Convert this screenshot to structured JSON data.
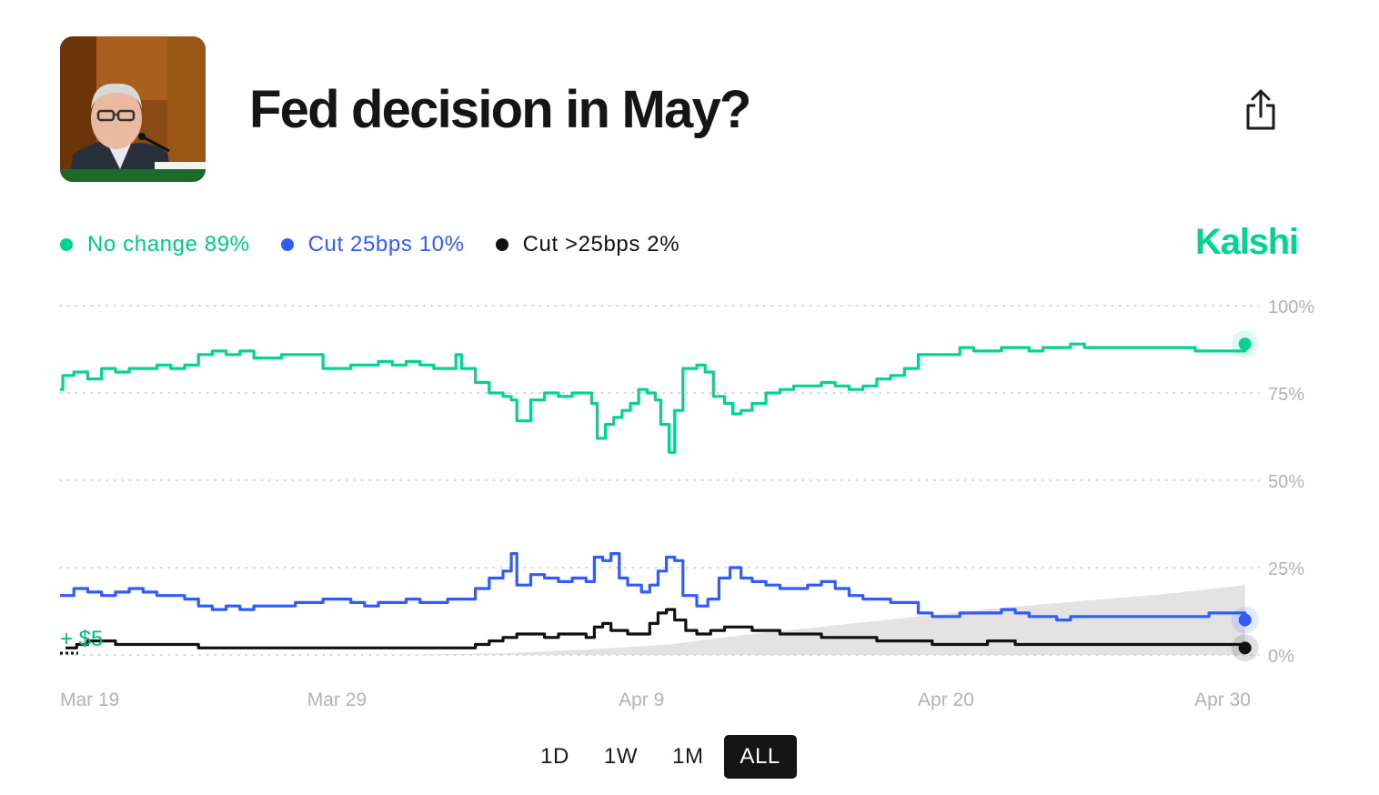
{
  "header": {
    "title": "Fed decision in May?",
    "thumbnail_icon": "speaker-photo",
    "share_icon": "share-icon"
  },
  "brand": {
    "name": "Kalshi",
    "color": "#00d492"
  },
  "legend": [
    {
      "label": "No change",
      "value": "89%",
      "color": "#00d492"
    },
    {
      "label": "Cut 25bps",
      "value": "10%",
      "color": "#2f5bff"
    },
    {
      "label": "Cut >25bps",
      "value": "2%",
      "color": "#111111"
    }
  ],
  "time_ranges": [
    "1D",
    "1W",
    "1M",
    "ALL"
  ],
  "selected_range": "ALL",
  "chart_data": {
    "type": "line",
    "ylim": [
      0,
      100
    ],
    "y_ticks": [
      0,
      25,
      50,
      75,
      100
    ],
    "y_tick_labels": [
      "0%",
      "25%",
      "50%",
      "75%",
      "100%"
    ],
    "x_range_days": [
      0,
      43.5
    ],
    "x_ticks": [
      {
        "label": "Mar 19",
        "day": 0
      },
      {
        "label": "Mar 29",
        "day": 10
      },
      {
        "label": "Apr 9",
        "day": 21
      },
      {
        "label": "Apr 20",
        "day": 32
      },
      {
        "label": "Apr 30",
        "day": 42
      }
    ],
    "annotation": "+ $5",
    "series": [
      {
        "name": "No change",
        "color": "#00d492",
        "points": [
          [
            0,
            76
          ],
          [
            0.1,
            80
          ],
          [
            0.5,
            81
          ],
          [
            1,
            79
          ],
          [
            1.5,
            82
          ],
          [
            2,
            81
          ],
          [
            2.5,
            82
          ],
          [
            3,
            82
          ],
          [
            3.5,
            83
          ],
          [
            4,
            82
          ],
          [
            4.5,
            83
          ],
          [
            5,
            86
          ],
          [
            5.5,
            87
          ],
          [
            6,
            86
          ],
          [
            6.5,
            87
          ],
          [
            7,
            85
          ],
          [
            7.5,
            85
          ],
          [
            8,
            86
          ],
          [
            8.5,
            86
          ],
          [
            9,
            86
          ],
          [
            9.5,
            82
          ],
          [
            10,
            82
          ],
          [
            10.5,
            83
          ],
          [
            11,
            83
          ],
          [
            11.5,
            84
          ],
          [
            12,
            83
          ],
          [
            12.5,
            84
          ],
          [
            13,
            83
          ],
          [
            13.5,
            82
          ],
          [
            14,
            82
          ],
          [
            14.3,
            86
          ],
          [
            14.5,
            82
          ],
          [
            15,
            78
          ],
          [
            15.5,
            75
          ],
          [
            16,
            74
          ],
          [
            16.3,
            73
          ],
          [
            16.5,
            67
          ],
          [
            17,
            73
          ],
          [
            17.5,
            75
          ],
          [
            18,
            74
          ],
          [
            18.5,
            75
          ],
          [
            19,
            75
          ],
          [
            19.2,
            72
          ],
          [
            19.4,
            62
          ],
          [
            19.7,
            66
          ],
          [
            20,
            68
          ],
          [
            20.3,
            70
          ],
          [
            20.6,
            72
          ],
          [
            20.9,
            76
          ],
          [
            21.2,
            75
          ],
          [
            21.5,
            73
          ],
          [
            21.7,
            66
          ],
          [
            22,
            58
          ],
          [
            22.2,
            70
          ],
          [
            22.5,
            82
          ],
          [
            23,
            83
          ],
          [
            23.3,
            81
          ],
          [
            23.6,
            74
          ],
          [
            24,
            72
          ],
          [
            24.3,
            69
          ],
          [
            24.6,
            70
          ],
          [
            25,
            72
          ],
          [
            25.5,
            75
          ],
          [
            26,
            76
          ],
          [
            26.5,
            77
          ],
          [
            27,
            77
          ],
          [
            27.5,
            78
          ],
          [
            28,
            77
          ],
          [
            28.5,
            76
          ],
          [
            29,
            77
          ],
          [
            29.5,
            79
          ],
          [
            30,
            80
          ],
          [
            30.5,
            82
          ],
          [
            31,
            86
          ],
          [
            31.5,
            86
          ],
          [
            32,
            86
          ],
          [
            32.5,
            88
          ],
          [
            33,
            87
          ],
          [
            33.5,
            87
          ],
          [
            34,
            88
          ],
          [
            34.5,
            88
          ],
          [
            35,
            87
          ],
          [
            35.5,
            88
          ],
          [
            36,
            88
          ],
          [
            36.5,
            89
          ],
          [
            37,
            88
          ],
          [
            37.5,
            88
          ],
          [
            38,
            88
          ],
          [
            38.5,
            88
          ],
          [
            39,
            88
          ],
          [
            39.5,
            88
          ],
          [
            40,
            88
          ],
          [
            40.5,
            88
          ],
          [
            41,
            87
          ],
          [
            41.5,
            87
          ],
          [
            42,
            87
          ],
          [
            42.8,
            89
          ]
        ]
      },
      {
        "name": "Cut 25bps",
        "color": "#2f5bff",
        "points": [
          [
            0,
            17
          ],
          [
            0.5,
            19
          ],
          [
            1,
            18
          ],
          [
            1.5,
            17
          ],
          [
            2,
            18
          ],
          [
            2.5,
            19
          ],
          [
            3,
            18
          ],
          [
            3.5,
            17
          ],
          [
            4,
            17
          ],
          [
            4.5,
            16
          ],
          [
            5,
            14
          ],
          [
            5.5,
            13
          ],
          [
            6,
            14
          ],
          [
            6.5,
            13
          ],
          [
            7,
            14
          ],
          [
            7.5,
            14
          ],
          [
            8,
            14
          ],
          [
            8.5,
            15
          ],
          [
            9,
            15
          ],
          [
            9.5,
            16
          ],
          [
            10,
            16
          ],
          [
            10.5,
            15
          ],
          [
            11,
            14
          ],
          [
            11.5,
            15
          ],
          [
            12,
            15
          ],
          [
            12.5,
            16
          ],
          [
            13,
            15
          ],
          [
            13.5,
            15
          ],
          [
            14,
            16
          ],
          [
            14.5,
            16
          ],
          [
            15,
            19
          ],
          [
            15.5,
            22
          ],
          [
            16,
            24
          ],
          [
            16.3,
            29
          ],
          [
            16.5,
            20
          ],
          [
            17,
            23
          ],
          [
            17.5,
            22
          ],
          [
            18,
            21
          ],
          [
            18.5,
            22
          ],
          [
            19,
            21
          ],
          [
            19.3,
            28
          ],
          [
            19.6,
            27
          ],
          [
            19.9,
            29
          ],
          [
            20.2,
            22
          ],
          [
            20.5,
            20
          ],
          [
            21,
            18
          ],
          [
            21.3,
            20
          ],
          [
            21.6,
            24
          ],
          [
            21.9,
            28
          ],
          [
            22.2,
            27
          ],
          [
            22.5,
            17
          ],
          [
            23,
            14
          ],
          [
            23.4,
            16
          ],
          [
            23.8,
            22
          ],
          [
            24.2,
            25
          ],
          [
            24.6,
            22
          ],
          [
            25,
            21
          ],
          [
            25.5,
            20
          ],
          [
            26,
            19
          ],
          [
            26.5,
            19
          ],
          [
            27,
            20
          ],
          [
            27.5,
            21
          ],
          [
            28,
            19
          ],
          [
            28.5,
            17
          ],
          [
            29,
            16
          ],
          [
            29.5,
            16
          ],
          [
            30,
            15
          ],
          [
            30.5,
            15
          ],
          [
            31,
            12
          ],
          [
            31.5,
            11
          ],
          [
            32,
            11
          ],
          [
            32.5,
            12
          ],
          [
            33,
            12
          ],
          [
            33.5,
            12
          ],
          [
            34,
            13
          ],
          [
            34.5,
            12
          ],
          [
            35,
            11
          ],
          [
            35.5,
            11
          ],
          [
            36,
            10
          ],
          [
            36.5,
            11
          ],
          [
            37,
            11
          ],
          [
            37.5,
            11
          ],
          [
            38,
            11
          ],
          [
            38.5,
            11
          ],
          [
            39,
            11
          ],
          [
            39.5,
            11
          ],
          [
            40,
            11
          ],
          [
            40.5,
            11
          ],
          [
            41,
            11
          ],
          [
            41.5,
            12
          ],
          [
            42,
            12
          ],
          [
            42.8,
            10
          ]
        ]
      },
      {
        "name": "Cut >25bps",
        "color": "#111111",
        "points": [
          [
            0.2,
            2
          ],
          [
            0.6,
            3
          ],
          [
            1,
            4
          ],
          [
            2,
            3
          ],
          [
            3,
            3
          ],
          [
            4,
            3
          ],
          [
            5,
            2
          ],
          [
            6,
            2
          ],
          [
            7,
            2
          ],
          [
            8,
            2
          ],
          [
            9,
            2
          ],
          [
            10,
            2
          ],
          [
            11,
            2
          ],
          [
            12,
            2
          ],
          [
            13,
            2
          ],
          [
            14,
            2
          ],
          [
            14.5,
            2
          ],
          [
            15,
            3
          ],
          [
            15.5,
            4
          ],
          [
            16,
            5
          ],
          [
            16.5,
            6
          ],
          [
            17,
            6
          ],
          [
            17.5,
            5
          ],
          [
            18,
            6
          ],
          [
            18.5,
            6
          ],
          [
            19,
            5
          ],
          [
            19.3,
            8
          ],
          [
            19.6,
            9
          ],
          [
            19.9,
            7
          ],
          [
            20.2,
            7
          ],
          [
            20.5,
            6
          ],
          [
            21,
            6
          ],
          [
            21.3,
            9
          ],
          [
            21.6,
            12
          ],
          [
            21.9,
            13
          ],
          [
            22.2,
            10
          ],
          [
            22.6,
            7
          ],
          [
            23,
            6
          ],
          [
            23.5,
            7
          ],
          [
            24,
            8
          ],
          [
            24.5,
            8
          ],
          [
            25,
            7
          ],
          [
            25.5,
            7
          ],
          [
            26,
            6
          ],
          [
            26.5,
            6
          ],
          [
            27,
            6
          ],
          [
            27.5,
            5
          ],
          [
            28,
            5
          ],
          [
            28.5,
            5
          ],
          [
            29,
            5
          ],
          [
            29.5,
            4
          ],
          [
            30,
            4
          ],
          [
            30.5,
            4
          ],
          [
            31,
            4
          ],
          [
            31.5,
            3
          ],
          [
            32,
            3
          ],
          [
            32.5,
            3
          ],
          [
            33,
            3
          ],
          [
            33.5,
            4
          ],
          [
            34,
            4
          ],
          [
            34.5,
            3
          ],
          [
            35,
            3
          ],
          [
            35.5,
            3
          ],
          [
            36,
            3
          ],
          [
            36.5,
            3
          ],
          [
            37,
            3
          ],
          [
            37.5,
            3
          ],
          [
            38,
            3
          ],
          [
            38.5,
            3
          ],
          [
            39,
            3
          ],
          [
            39.5,
            3
          ],
          [
            40,
            3
          ],
          [
            40.5,
            3
          ],
          [
            41,
            3
          ],
          [
            41.5,
            3
          ],
          [
            42,
            3
          ],
          [
            42.8,
            2
          ]
        ]
      },
      {
        "name": "Position value",
        "color": "#dedede",
        "type": "area",
        "points": [
          [
            0,
            0
          ],
          [
            4,
            0
          ],
          [
            8,
            0
          ],
          [
            12,
            0
          ],
          [
            16,
            0.5
          ],
          [
            19,
            1.5
          ],
          [
            22,
            3
          ],
          [
            25,
            6
          ],
          [
            28,
            8.5
          ],
          [
            31,
            11
          ],
          [
            34,
            13.5
          ],
          [
            37,
            15.5
          ],
          [
            40,
            17.5
          ],
          [
            42.8,
            20
          ]
        ]
      }
    ]
  }
}
